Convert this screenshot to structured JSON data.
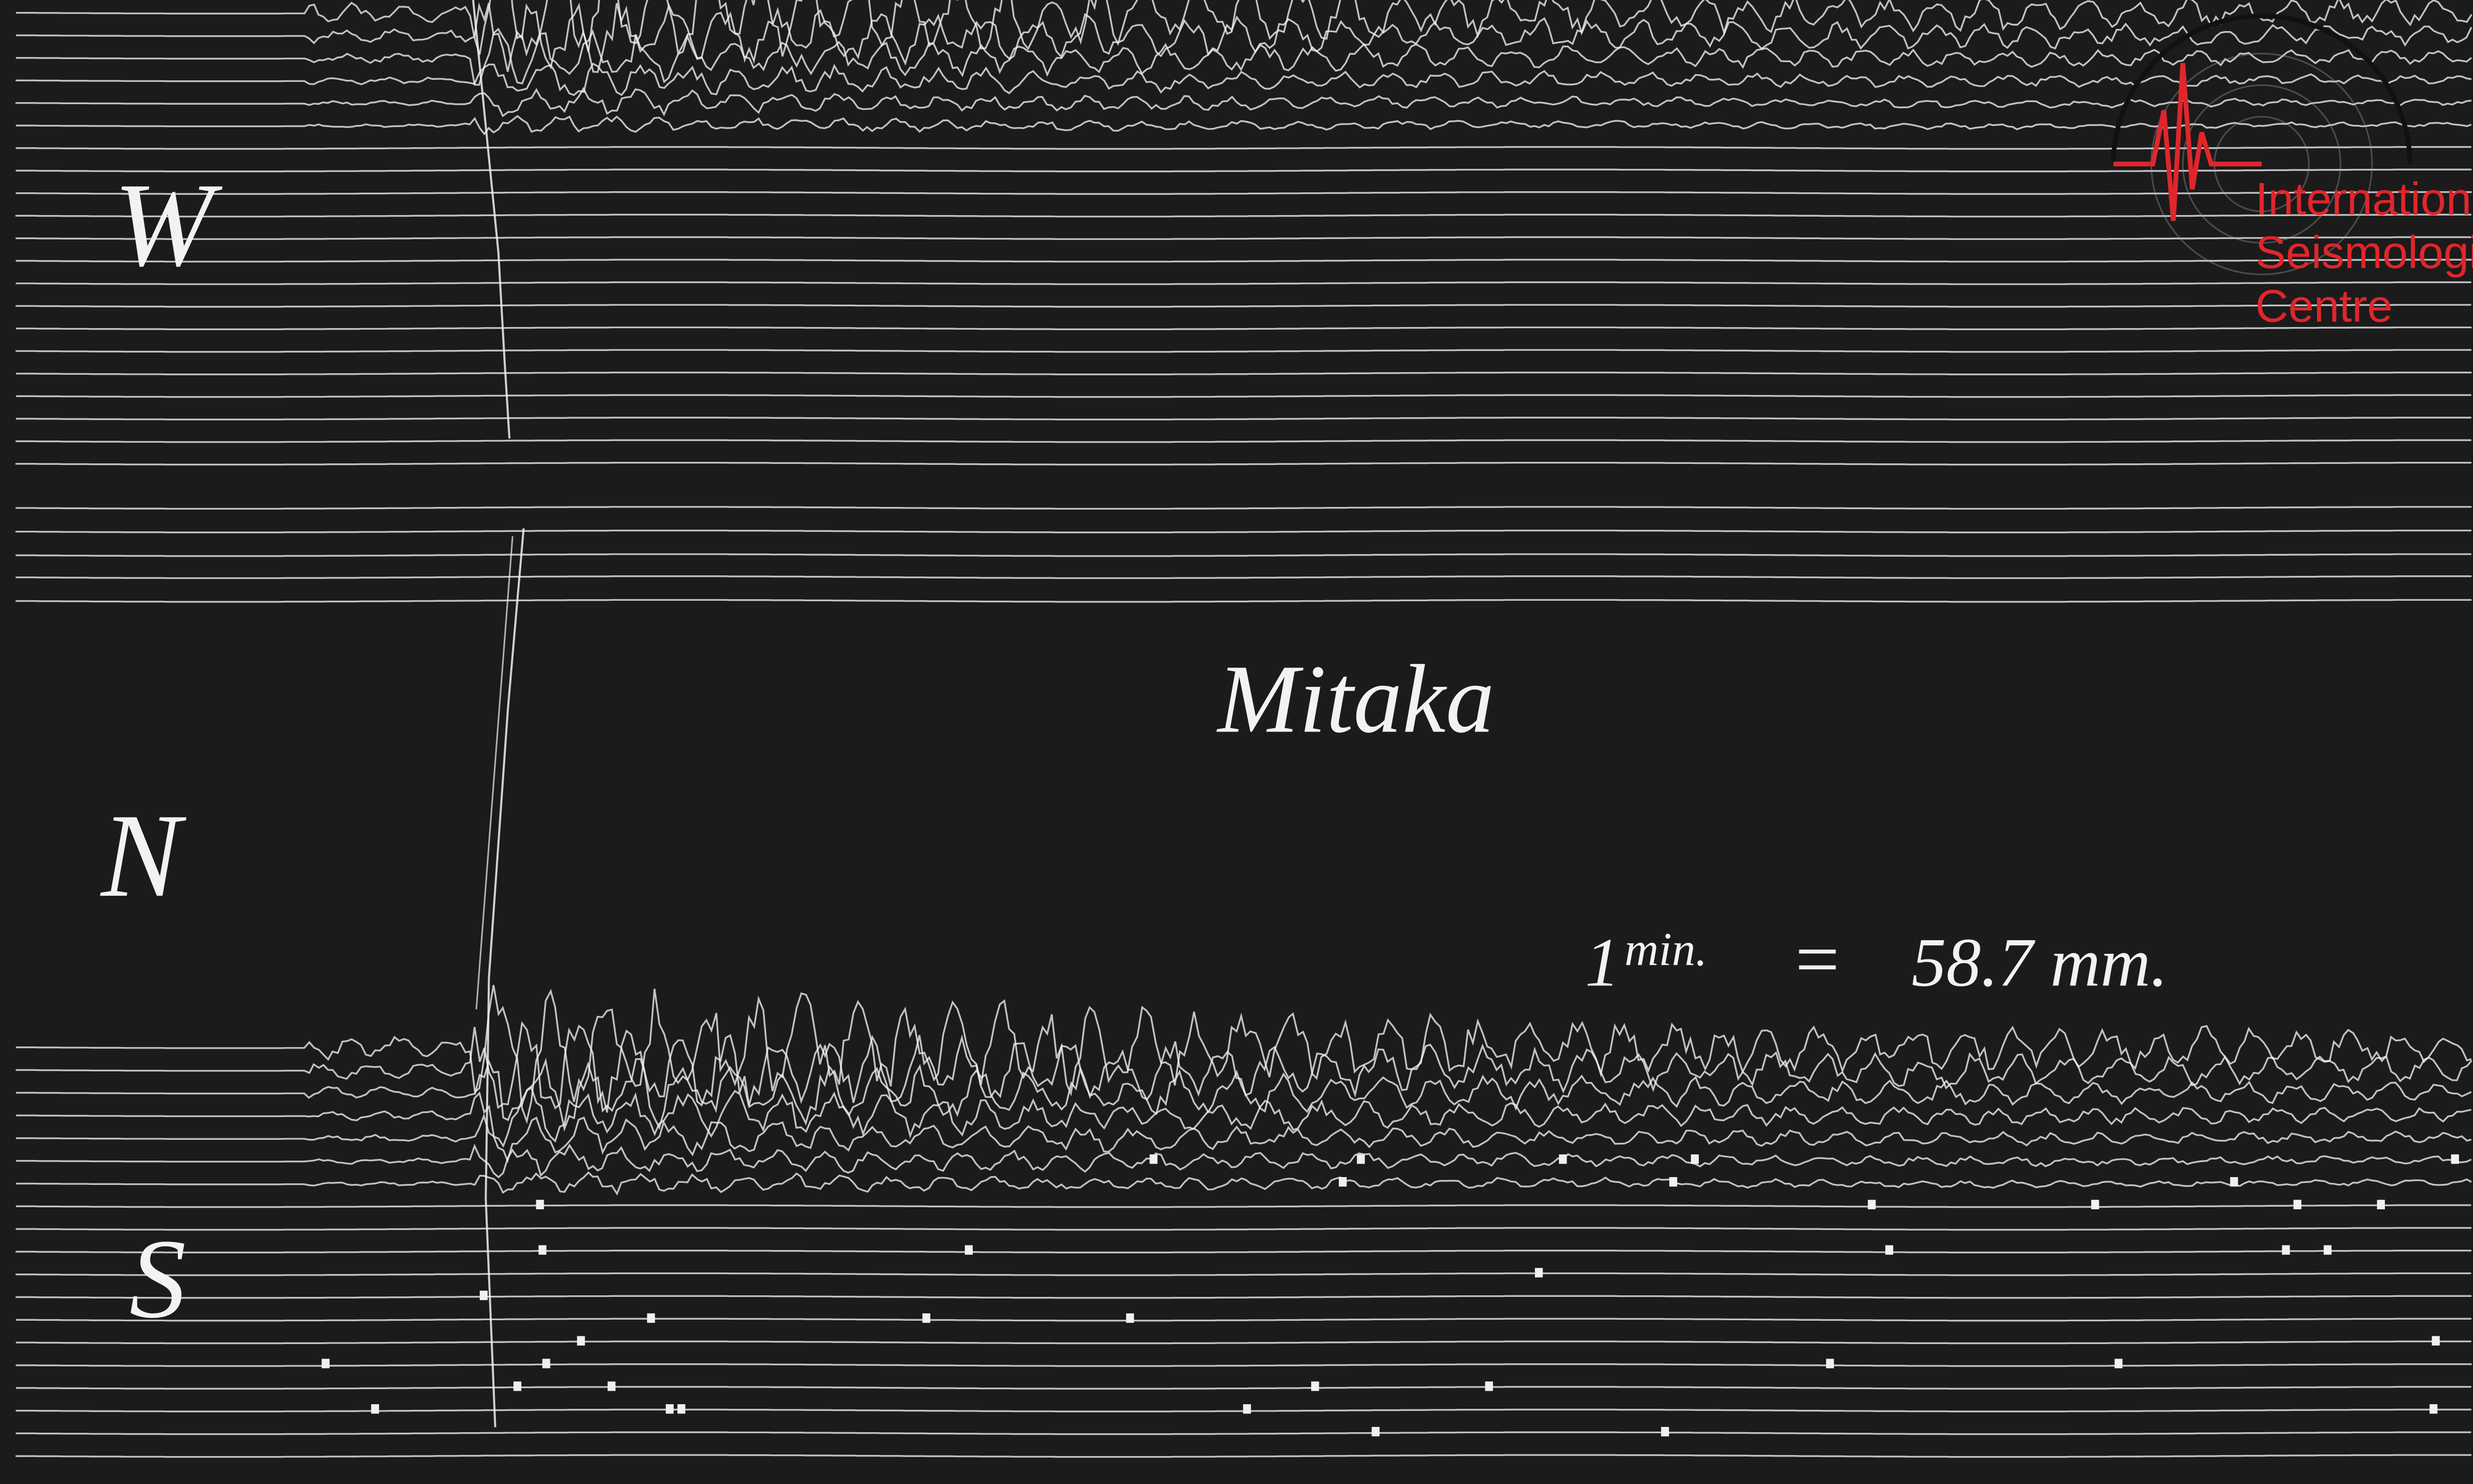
{
  "labels": {
    "west": "W",
    "north": "N",
    "south": "S"
  },
  "station": "Mitaka",
  "scale": {
    "base": "1",
    "superscript": "min.",
    "equals": "=",
    "length": "58.7 mm."
  },
  "logo": {
    "lines": [
      "International",
      "Seismological",
      "Centre"
    ]
  }
}
